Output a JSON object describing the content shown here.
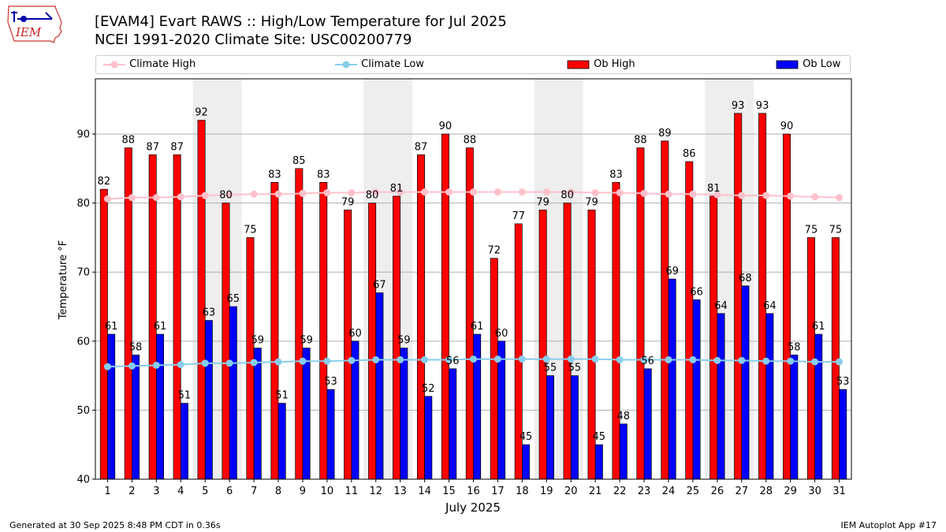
{
  "header": {
    "title_line1": "[EVAM4] Evart RAWS :: High/Low Temperature for Jul 2025",
    "title_line2": "NCEI 1991-2020 Climate Site: USC00200779",
    "logo_text": "IEM"
  },
  "legend": {
    "climate_high": "Climate High",
    "climate_low": "Climate Low",
    "ob_high": "Ob High",
    "ob_low": "Ob Low"
  },
  "footer": {
    "generated": "Generated at 30 Sep 2025 8:48 PM CDT in 0.36s",
    "app": "IEM Autoplot App #17"
  },
  "colors": {
    "ob_high": "#ff0000",
    "ob_low": "#0000ff",
    "climate_high": "#ffc0cb",
    "climate_low": "#87ceeb",
    "weekend_shade": "#eeeeee",
    "grid": "#b0b0b0"
  },
  "chart_data": {
    "type": "bar",
    "xlabel": "July 2025",
    "ylabel": "Temperature °F",
    "ylim": [
      40,
      98
    ],
    "yticks": [
      40,
      50,
      60,
      70,
      80,
      90
    ],
    "grid": "horizontal",
    "legend_position": "top",
    "categories": [
      "1",
      "2",
      "3",
      "4",
      "5",
      "6",
      "7",
      "8",
      "9",
      "10",
      "11",
      "12",
      "13",
      "14",
      "15",
      "16",
      "17",
      "18",
      "19",
      "20",
      "21",
      "22",
      "23",
      "24",
      "25",
      "26",
      "27",
      "28",
      "29",
      "30",
      "31"
    ],
    "shaded_days": [
      [
        5,
        6
      ],
      [
        12,
        13
      ],
      [
        19,
        20
      ],
      [
        26,
        27
      ]
    ],
    "series": [
      {
        "name": "Ob High",
        "kind": "bar",
        "values": [
          82,
          88,
          87,
          87,
          92,
          80,
          75,
          83,
          85,
          83,
          79,
          80,
          81,
          87,
          90,
          88,
          72,
          77,
          79,
          80,
          79,
          83,
          88,
          89,
          86,
          81,
          93,
          93,
          90,
          75,
          75
        ]
      },
      {
        "name": "Ob Low",
        "kind": "bar",
        "values": [
          61,
          58,
          61,
          51,
          63,
          65,
          59,
          51,
          59,
          53,
          60,
          67,
          59,
          52,
          56,
          61,
          60,
          45,
          55,
          55,
          45,
          48,
          56,
          69,
          66,
          64,
          68,
          64,
          58,
          61,
          53
        ]
      },
      {
        "name": "Climate High",
        "kind": "line",
        "values": [
          80.6,
          80.8,
          80.8,
          80.9,
          81.1,
          81.2,
          81.3,
          81.3,
          81.4,
          81.5,
          81.5,
          81.6,
          81.6,
          81.6,
          81.6,
          81.6,
          81.6,
          81.6,
          81.6,
          81.6,
          81.5,
          81.5,
          81.4,
          81.3,
          81.3,
          81.2,
          81.1,
          81.1,
          81.0,
          80.9,
          80.8
        ]
      },
      {
        "name": "Climate Low",
        "kind": "line",
        "values": [
          56.3,
          56.4,
          56.5,
          56.6,
          56.8,
          56.8,
          56.9,
          57.0,
          57.1,
          57.1,
          57.2,
          57.3,
          57.3,
          57.3,
          57.3,
          57.4,
          57.4,
          57.4,
          57.4,
          57.4,
          57.4,
          57.3,
          57.3,
          57.3,
          57.3,
          57.2,
          57.2,
          57.1,
          57.1,
          57.0,
          57.0
        ]
      }
    ]
  }
}
